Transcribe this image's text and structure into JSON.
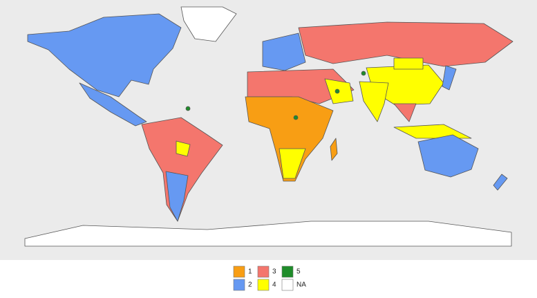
{
  "legend": {
    "items": [
      {
        "label": "1",
        "color": "#f89e14"
      },
      {
        "label": "2",
        "color": "#6699f2"
      },
      {
        "label": "3",
        "color": "#f4766d"
      },
      {
        "label": "4",
        "color": "#ffff00"
      },
      {
        "label": "5",
        "color": "#1f8c2a"
      },
      {
        "label": "NA",
        "color": "#ffffff"
      }
    ]
  }
}
